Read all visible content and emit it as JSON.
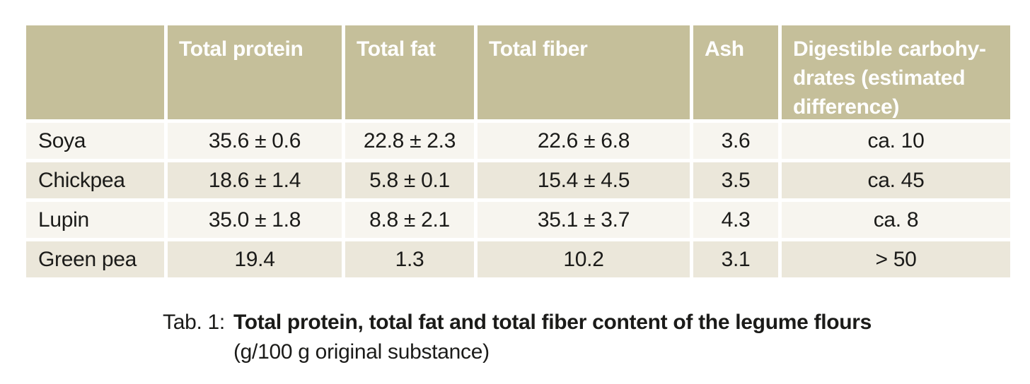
{
  "colors": {
    "page_bg": "#ffffff",
    "header_bg": "#c5bf9a",
    "header_text": "#ffffff",
    "row_light": "#f7f5ef",
    "row_dark": "#ebe7da",
    "body_text": "#1b1b19"
  },
  "table": {
    "columns": [
      "",
      "Total protein",
      "Total fat",
      "Total fiber",
      "Ash",
      "Digestible carbohy-\ndrates (estimated\ndifference)"
    ],
    "rows": [
      {
        "label": "Soya",
        "values": [
          "35.6 ± 0.6",
          "22.8 ± 2.3",
          "22.6 ± 6.8",
          "3.6",
          "ca. 10"
        ]
      },
      {
        "label": "Chickpea",
        "values": [
          "18.6 ± 1.4",
          "5.8 ± 0.1",
          "15.4 ± 4.5",
          "3.5",
          "ca. 45"
        ]
      },
      {
        "label": "Lupin",
        "values": [
          "35.0 ± 1.8",
          "8.8 ± 2.1",
          "35.1 ± 3.7",
          "4.3",
          "ca. 8"
        ]
      },
      {
        "label": "Green pea",
        "values": [
          "19.4",
          "1.3",
          "10.2",
          "3.1",
          "> 50"
        ]
      }
    ]
  },
  "caption": {
    "label": "Tab. 1:",
    "title": "Total protein, total fat and total fiber content of the legume flours",
    "subtitle": "(g/100 g original substance)"
  }
}
